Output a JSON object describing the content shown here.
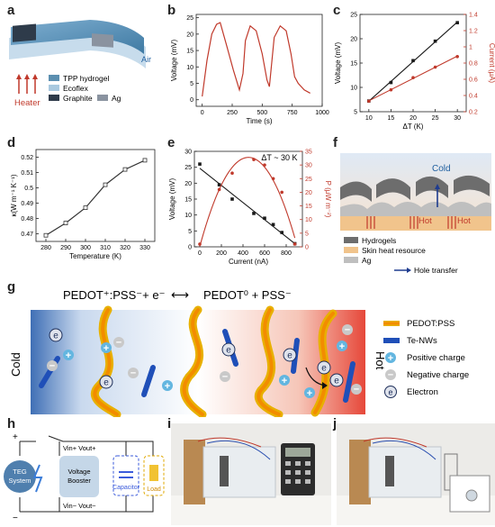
{
  "panel_labels": {
    "a": "a",
    "b": "b",
    "c": "c",
    "d": "d",
    "e": "e",
    "f": "f",
    "g": "g",
    "h": "h",
    "i": "i",
    "j": "j"
  },
  "panel_a": {
    "air": "Air",
    "heater": "Heater",
    "legend": [
      {
        "label": "TPP hydrogel",
        "color": "#5b8fb0"
      },
      {
        "label": "Ecoflex",
        "color": "#a9c9df"
      },
      {
        "label": "Graphite",
        "color": "#2e3b4a"
      },
      {
        "label": "Ag",
        "color": "#8a93a0"
      }
    ]
  },
  "chart_data": [
    {
      "id": "b",
      "type": "line",
      "xlabel": "Time (s)",
      "ylabel": "Voltage (mV)",
      "xlim": [
        -50,
        1000
      ],
      "ylim": [
        -2,
        26
      ],
      "xticks": [
        0,
        250,
        500,
        750,
        1000
      ],
      "yticks": [
        0,
        5,
        10,
        15,
        20,
        25
      ],
      "series": [
        {
          "color": "#c0392b",
          "x": [
            0,
            40,
            80,
            120,
            150,
            200,
            260,
            310,
            340,
            360,
            400,
            450,
            500,
            540,
            560,
            600,
            650,
            700,
            740,
            770,
            800,
            850,
            900
          ],
          "y": [
            1,
            12,
            20,
            23,
            23.5,
            17,
            9,
            3,
            8,
            18,
            22.5,
            21,
            14,
            6,
            4,
            19,
            22.5,
            21,
            14,
            7,
            5,
            3,
            2
          ]
        }
      ]
    },
    {
      "id": "c",
      "type": "scatter",
      "xlabel": "ΔT (K)",
      "ylabel": "Voltage (mV)",
      "y2label": "Current (μA)",
      "xlim": [
        8,
        32
      ],
      "ylim": [
        5,
        25
      ],
      "y2lim": [
        0.2,
        1.4
      ],
      "xticks": [
        10,
        15,
        20,
        25,
        30
      ],
      "yticks": [
        5,
        10,
        15,
        20,
        25
      ],
      "y2ticks": [
        0.2,
        0.4,
        0.6,
        0.8,
        1.0,
        1.2,
        1.4
      ],
      "series": [
        {
          "name": "Voltage",
          "color": "#1a1a1a",
          "marker": "square",
          "x": [
            10,
            15,
            20,
            25,
            30
          ],
          "y": [
            7.2,
            11,
            15.5,
            19.5,
            23.3
          ]
        },
        {
          "name": "Current",
          "color": "#c0392b",
          "marker": "circle",
          "axis": "right",
          "x": [
            10,
            15,
            20,
            25,
            30
          ],
          "y": [
            0.33,
            0.47,
            0.62,
            0.75,
            0.88
          ]
        }
      ]
    },
    {
      "id": "d",
      "type": "line",
      "xlabel": "Temperature (K)",
      "ylabel": "κ(W m⁻¹ K⁻¹)",
      "xlim": [
        275,
        335
      ],
      "ylim": [
        0.465,
        0.525
      ],
      "xticks": [
        280,
        290,
        300,
        310,
        320,
        330
      ],
      "yticks": [
        0.47,
        0.48,
        0.49,
        0.5,
        0.51,
        0.52
      ],
      "series": [
        {
          "color": "#333333",
          "marker": "open-square",
          "x": [
            280,
            290,
            300,
            310,
            320,
            330
          ],
          "y": [
            0.469,
            0.477,
            0.487,
            0.502,
            0.512,
            0.518
          ]
        }
      ]
    },
    {
      "id": "e",
      "type": "scatter",
      "annotation": "ΔT ~ 30 K",
      "xlabel": "Current (nA)",
      "ylabel": "Voltage (mV)",
      "y2label": "P (μW m⁻²)",
      "xlim": [
        -50,
        950
      ],
      "ylim": [
        0,
        30
      ],
      "y2lim": [
        0,
        35
      ],
      "xticks": [
        0,
        200,
        400,
        600,
        800
      ],
      "yticks": [
        0,
        5,
        10,
        15,
        20,
        25,
        30
      ],
      "y2ticks": [
        0,
        5,
        10,
        15,
        20,
        25,
        30,
        35
      ],
      "series": [
        {
          "name": "Voltage",
          "color": "#1a1a1a",
          "marker": "square",
          "x": [
            0,
            180,
            300,
            500,
            600,
            680,
            760,
            880
          ],
          "y": [
            26,
            19.5,
            15,
            10.5,
            9,
            7,
            4.5,
            1
          ]
        },
        {
          "name": "Power",
          "color": "#c0392b",
          "marker": "circle",
          "axis": "right",
          "x": [
            0,
            180,
            300,
            500,
            600,
            680,
            760,
            880
          ],
          "y": [
            1,
            21,
            27,
            32,
            30,
            25,
            20,
            1
          ]
        }
      ]
    }
  ],
  "panel_f": {
    "cold": "Cold",
    "hot1": "Hot",
    "hot2": "Hot",
    "legend": [
      {
        "label": "Hydrogels",
        "color": "#6d6d6d"
      },
      {
        "label": "Skin heat resource",
        "color": "#f1c48c"
      },
      {
        "label": "Ag",
        "color": "#bfbfbf"
      },
      {
        "label": "Hole transfer",
        "color": "#1f3c8f",
        "arrow": true
      }
    ]
  },
  "panel_g": {
    "equation_left": "PEDOT⁺:PSS⁻+ e⁻",
    "equation_arrow": "⟷",
    "equation_right": "PEDOT⁰ + PSS⁻",
    "cold": "Cold",
    "hot": "Hot",
    "electron_symbol": "e",
    "plus_symbol": "+",
    "minus_symbol": "−",
    "legend": [
      {
        "label": "PEDOT:PSS",
        "kind": "pedot"
      },
      {
        "label": "Te-NWs",
        "kind": "tenw"
      },
      {
        "label": "Positive charge",
        "kind": "plus"
      },
      {
        "label": "Negative charge",
        "kind": "minus"
      },
      {
        "label": "Electron",
        "kind": "electron"
      }
    ]
  },
  "panel_h": {
    "plus": "+",
    "minus": "−",
    "vin_plus": "Vin+ Vout+",
    "vin_minus": "Vin− Vout−",
    "teg": "TEG System",
    "booster": "Voltage Booster",
    "capacitor": "Capacitor",
    "load": "Load"
  }
}
